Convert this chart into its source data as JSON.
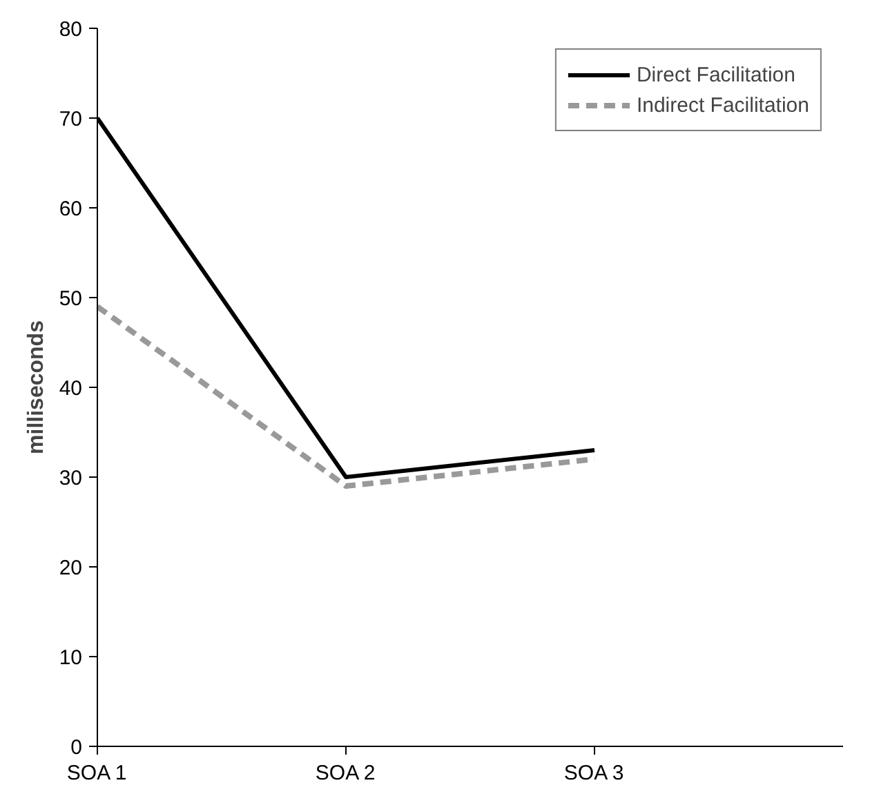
{
  "chart_data": {
    "type": "line",
    "ylabel": "milliseconds",
    "categories": [
      "SOA 1",
      "SOA 2",
      "SOA 3",
      null
    ],
    "ylim": [
      0,
      80
    ],
    "yticks": [
      0,
      10,
      20,
      30,
      40,
      50,
      60,
      70,
      80
    ],
    "series": [
      {
        "name": "Direct Facilitation",
        "color": "#000000",
        "line_style": "solid",
        "values": [
          70,
          30,
          33,
          null
        ]
      },
      {
        "name": "Indirect Facilitation",
        "color": "#999999",
        "line_style": "dashed",
        "values": [
          49,
          29,
          32,
          null
        ]
      }
    ],
    "grid": false,
    "legend": "top right"
  }
}
